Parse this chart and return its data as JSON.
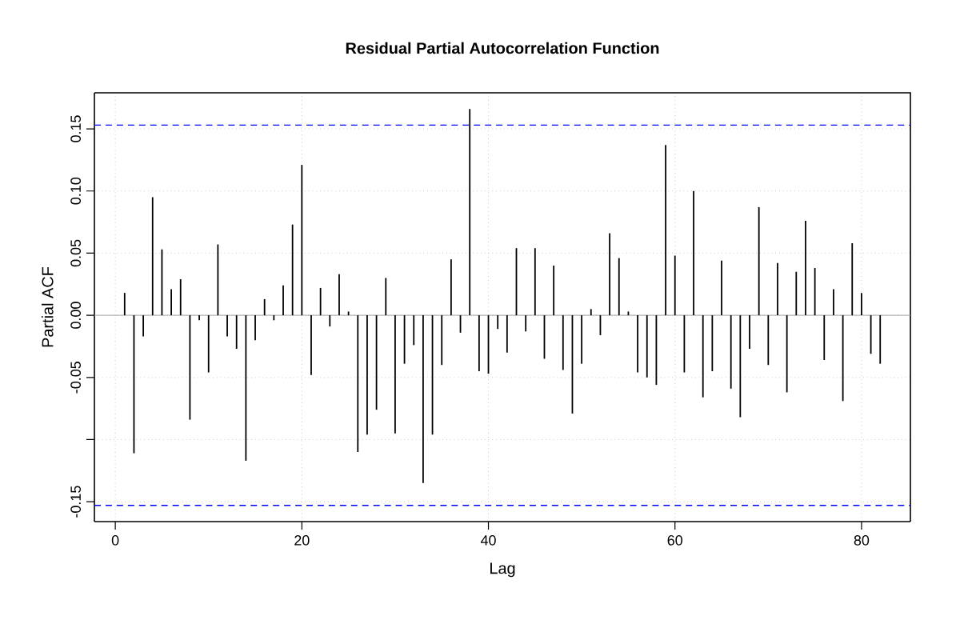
{
  "chart_data": {
    "type": "bar",
    "title": "Residual Partial Autocorrelation Function",
    "xlabel": "Lag",
    "ylabel": "Partial ACF",
    "x": [
      1,
      2,
      3,
      4,
      5,
      6,
      7,
      8,
      9,
      10,
      11,
      12,
      13,
      14,
      15,
      16,
      17,
      18,
      19,
      20,
      21,
      22,
      23,
      24,
      25,
      26,
      27,
      28,
      29,
      30,
      31,
      32,
      33,
      34,
      35,
      36,
      37,
      38,
      39,
      40,
      41,
      42,
      43,
      44,
      45,
      46,
      47,
      48,
      49,
      50,
      51,
      52,
      53,
      54,
      55,
      56,
      57,
      58,
      59,
      60,
      61,
      62,
      63,
      64,
      65,
      66,
      67,
      68,
      69,
      70,
      71,
      72,
      73,
      74,
      75,
      76,
      77,
      78,
      79,
      80,
      81,
      82
    ],
    "values": [
      0.018,
      -0.111,
      -0.017,
      0.095,
      0.053,
      0.021,
      0.029,
      -0.084,
      -0.004,
      -0.046,
      0.057,
      -0.017,
      -0.027,
      -0.117,
      -0.02,
      0.013,
      -0.004,
      0.024,
      0.073,
      0.121,
      -0.048,
      0.022,
      -0.009,
      0.033,
      0.003,
      -0.11,
      -0.096,
      -0.076,
      0.03,
      -0.095,
      -0.039,
      -0.024,
      -0.135,
      -0.096,
      -0.04,
      0.045,
      -0.014,
      0.166,
      -0.045,
      -0.047,
      -0.011,
      -0.03,
      0.054,
      -0.013,
      0.054,
      -0.035,
      0.04,
      -0.044,
      -0.079,
      -0.039,
      0.005,
      -0.016,
      0.066,
      0.046,
      0.003,
      -0.046,
      -0.05,
      -0.056,
      0.137,
      0.048,
      -0.046,
      0.1,
      -0.066,
      -0.045,
      0.044,
      -0.059,
      -0.082,
      -0.027,
      0.087,
      -0.04,
      0.042,
      -0.062,
      0.035,
      0.076,
      0.038,
      -0.036,
      0.021,
      -0.069,
      0.058,
      0.018,
      -0.031,
      -0.039
    ],
    "color": "#000000",
    "xlim": [
      -2.24,
      85.24
    ],
    "ylim": [
      -0.166,
      0.179
    ],
    "xticks": [
      0,
      20,
      40,
      60,
      80
    ],
    "yticks": [
      -0.15,
      {
        "value": -0.1,
        "label": null
      },
      -0.05,
      {
        "value": 0,
        "label": "0.00"
      },
      0.05,
      {
        "value": 0.1,
        "label": "0.10"
      },
      0.15
    ],
    "grid": true,
    "ref_lines": [
      {
        "axis": "y",
        "value": 0.153,
        "color": "#0000ff",
        "line_style": "dashed"
      },
      {
        "axis": "y",
        "value": -0.153,
        "color": "#0000ff",
        "line_style": "dashed"
      }
    ]
  }
}
